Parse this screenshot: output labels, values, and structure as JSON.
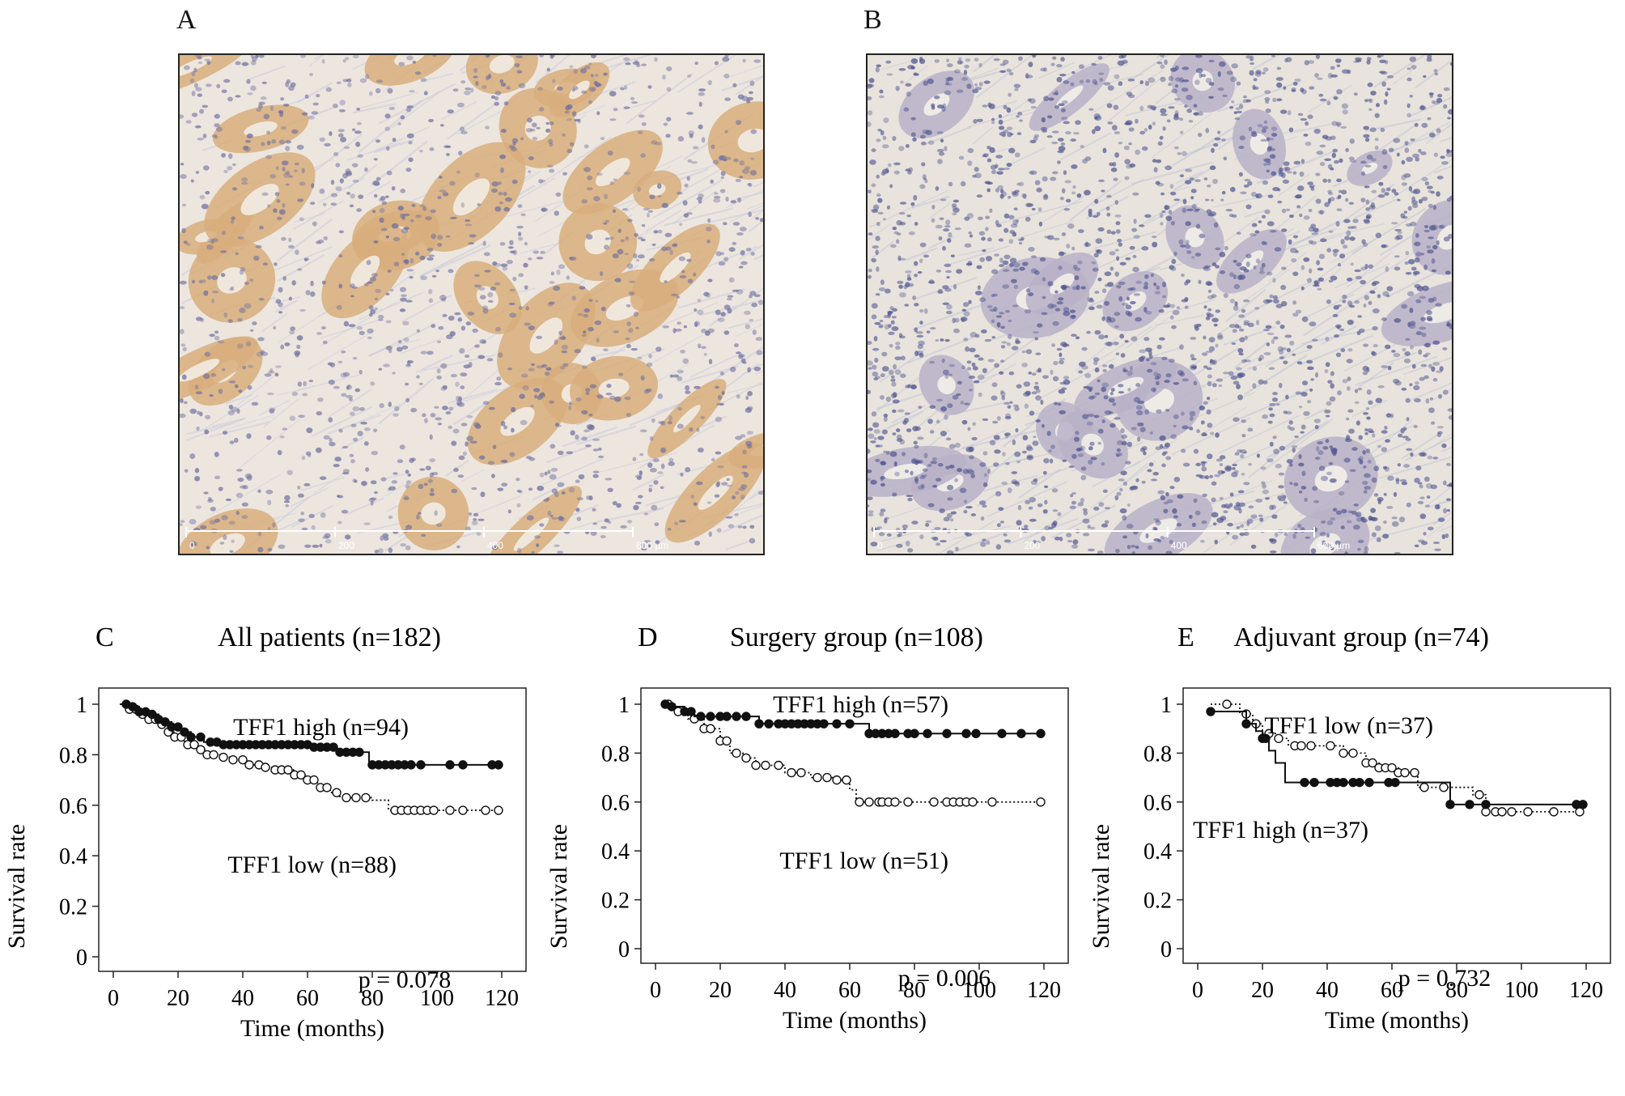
{
  "panels": {
    "A": {
      "letter": "A",
      "scale_ticks": [
        "0",
        "200",
        "400",
        "600 µm"
      ]
    },
    "B": {
      "letter": "B",
      "scale_ticks": [
        "0",
        "200",
        "400",
        "600 µm"
      ]
    }
  },
  "chart_data": [
    {
      "type": "line",
      "panel": "C",
      "title": "All patients (n=182)",
      "xlabel": "Time (months)",
      "ylabel": "Survival rate",
      "xlim": [
        0,
        120
      ],
      "ylim": [
        0,
        1
      ],
      "xticks": [
        0,
        20,
        40,
        60,
        80,
        100,
        120
      ],
      "yticks": [
        0,
        0.2,
        0.4,
        0.6,
        0.8,
        1
      ],
      "ytick_labels": [
        "0",
        "0.2",
        "0.4",
        "0.6",
        "0.8",
        "1"
      ],
      "p_value": "p = 0.078",
      "series": [
        {
          "name": "TFF1 high (n=94)",
          "style": "solid",
          "marker": "filled",
          "x": [
            2,
            5,
            8,
            11,
            14,
            16,
            18,
            21,
            24,
            28,
            33,
            38,
            42,
            47,
            52,
            56,
            61,
            66,
            69,
            74,
            79,
            85,
            90,
            96,
            102,
            108,
            119
          ],
          "y": [
            1.0,
            0.99,
            0.97,
            0.96,
            0.94,
            0.93,
            0.91,
            0.89,
            0.87,
            0.85,
            0.84,
            0.84,
            0.84,
            0.84,
            0.84,
            0.84,
            0.83,
            0.83,
            0.81,
            0.81,
            0.76,
            0.76,
            0.76,
            0.76,
            0.76,
            0.76,
            0.76
          ],
          "markers_x": [
            4,
            6,
            8,
            10,
            12,
            14,
            16,
            18,
            20,
            22,
            24,
            27,
            30,
            32,
            34,
            36,
            38,
            40,
            42,
            44,
            46,
            48,
            50,
            52,
            54,
            56,
            58,
            60,
            62,
            64,
            66,
            68,
            70,
            72,
            74,
            76,
            80,
            82,
            84,
            86,
            88,
            90,
            92,
            95,
            104,
            108,
            117,
            119
          ]
        },
        {
          "name": "TFF1 low (n=88)",
          "style": "dotted",
          "marker": "open",
          "x": [
            2,
            5,
            8,
            11,
            14,
            17,
            19,
            22,
            26,
            29,
            33,
            37,
            41,
            46,
            50,
            56,
            60,
            63,
            67,
            70,
            75,
            80,
            85,
            90,
            100,
            110,
            119
          ],
          "y": [
            1.0,
            0.98,
            0.96,
            0.94,
            0.92,
            0.89,
            0.87,
            0.84,
            0.82,
            0.8,
            0.79,
            0.78,
            0.76,
            0.75,
            0.74,
            0.72,
            0.7,
            0.67,
            0.65,
            0.63,
            0.63,
            0.62,
            0.58,
            0.58,
            0.58,
            0.58,
            0.58
          ],
          "markers_x": [
            5,
            7,
            9,
            11,
            13,
            15,
            17,
            19,
            21,
            23,
            25,
            27,
            29,
            31,
            34,
            37,
            40,
            42,
            45,
            47,
            50,
            52,
            54,
            56,
            58,
            60,
            62,
            64,
            66,
            69,
            72,
            75,
            78,
            87,
            89,
            91,
            93,
            95,
            97,
            99,
            104,
            108,
            115,
            119
          ]
        }
      ]
    },
    {
      "type": "line",
      "panel": "D",
      "title": "Surgery group (n=108)",
      "xlabel": "Time (months)",
      "ylabel": "Survival rate",
      "xlim": [
        0,
        120
      ],
      "ylim": [
        0,
        1
      ],
      "xticks": [
        0,
        20,
        40,
        60,
        80,
        100,
        120
      ],
      "yticks": [
        0,
        0.2,
        0.4,
        0.6,
        0.8,
        1
      ],
      "ytick_labels": [
        "0",
        "0.2",
        "0.4",
        "0.6",
        "0.8",
        "1"
      ],
      "p_value": "p = 0.006",
      "series": [
        {
          "name": "TFF1 high (n=57)",
          "style": "solid",
          "marker": "filled",
          "x": [
            2,
            5,
            9,
            12,
            20,
            26,
            32,
            40,
            50,
            60,
            66,
            75,
            85,
            95,
            119
          ],
          "y": [
            1.0,
            0.99,
            0.97,
            0.95,
            0.95,
            0.95,
            0.92,
            0.92,
            0.92,
            0.92,
            0.88,
            0.88,
            0.88,
            0.88,
            0.88
          ],
          "markers_x": [
            3,
            5,
            9,
            11,
            14,
            17,
            20,
            22,
            25,
            28,
            32,
            35,
            38,
            40,
            42,
            44,
            46,
            48,
            50,
            52,
            56,
            60,
            66,
            68,
            70,
            72,
            74,
            78,
            80,
            84,
            90,
            96,
            99,
            107,
            113,
            119
          ]
        },
        {
          "name": "TFF1 low (n=51)",
          "style": "dotted",
          "marker": "open",
          "x": [
            2,
            6,
            10,
            15,
            20,
            23,
            27,
            31,
            40,
            48,
            55,
            60,
            62,
            70,
            80,
            90,
            119
          ],
          "y": [
            1.0,
            0.97,
            0.94,
            0.9,
            0.85,
            0.8,
            0.78,
            0.75,
            0.72,
            0.7,
            0.69,
            0.65,
            0.6,
            0.6,
            0.6,
            0.6,
            0.6
          ],
          "markers_x": [
            4,
            7,
            12,
            15,
            17,
            20,
            22,
            25,
            28,
            31,
            34,
            38,
            42,
            45,
            50,
            53,
            56,
            59,
            63,
            66,
            69,
            70,
            72,
            74,
            78,
            86,
            90,
            92,
            94,
            96,
            98,
            104,
            119
          ]
        }
      ]
    },
    {
      "type": "line",
      "panel": "E",
      "title": "Adjuvant group (n=74)",
      "xlabel": "Time (months)",
      "ylabel": "Survival rate",
      "xlim": [
        0,
        120
      ],
      "ylim": [
        0,
        1
      ],
      "xticks": [
        0,
        20,
        40,
        60,
        80,
        100,
        120
      ],
      "yticks": [
        0,
        0.2,
        0.4,
        0.6,
        0.8,
        1
      ],
      "ytick_labels": [
        "0",
        "0.2",
        "0.4",
        "0.6",
        "0.8",
        "1"
      ],
      "p_value": "p = 0.732",
      "series": [
        {
          "name": "TFF1 high (n=37)",
          "style": "solid",
          "marker": "filled",
          "x": [
            4,
            9,
            15,
            18,
            20,
            22,
            24,
            27,
            35,
            45,
            60,
            70,
            78,
            85,
            95,
            119
          ],
          "y": [
            0.97,
            0.97,
            0.92,
            0.89,
            0.86,
            0.81,
            0.76,
            0.68,
            0.68,
            0.68,
            0.68,
            0.68,
            0.59,
            0.59,
            0.59,
            0.59
          ],
          "markers_x": [
            4,
            15,
            20,
            21,
            33,
            36,
            41,
            43,
            45,
            48,
            50,
            53,
            59,
            61,
            78,
            84,
            89,
            117,
            119
          ]
        },
        {
          "name": "TFF1 low (n=37)",
          "style": "dotted",
          "marker": "open",
          "x": [
            4,
            10,
            13,
            17,
            20,
            24,
            28,
            32,
            40,
            45,
            52,
            56,
            62,
            68,
            75,
            85,
            89,
            100,
            118
          ],
          "y": [
            1.0,
            1.0,
            0.96,
            0.92,
            0.88,
            0.86,
            0.83,
            0.83,
            0.83,
            0.8,
            0.76,
            0.74,
            0.72,
            0.66,
            0.66,
            0.63,
            0.56,
            0.56,
            0.56
          ],
          "markers_x": [
            9,
            15,
            18,
            22,
            25,
            30,
            32,
            35,
            41,
            45,
            48,
            52,
            54,
            56,
            58,
            60,
            62,
            64,
            67,
            70,
            76,
            87,
            89,
            92,
            94,
            97,
            102,
            110,
            118
          ]
        }
      ]
    }
  ]
}
